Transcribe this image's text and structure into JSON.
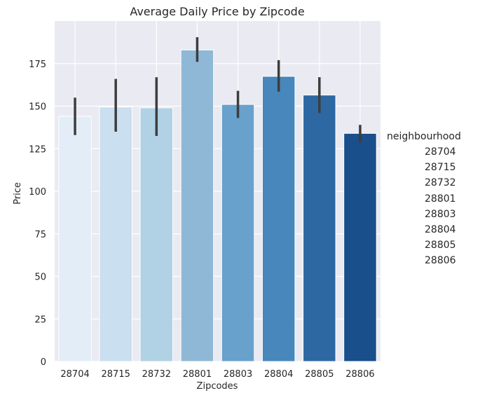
{
  "chart_data": {
    "type": "bar",
    "title": "Average Daily Price by Zipcode",
    "xlabel": "Zipcodes",
    "ylabel": "Price",
    "categories": [
      "28704",
      "28715",
      "28732",
      "28801",
      "28803",
      "28804",
      "28805",
      "28806"
    ],
    "values": [
      144,
      149.5,
      149,
      183,
      151,
      167.5,
      156.5,
      134
    ],
    "error_low": [
      133,
      135,
      132.5,
      176,
      143,
      158.5,
      146,
      128.5
    ],
    "error_high": [
      155,
      166,
      167,
      190.5,
      159,
      177,
      167,
      139
    ],
    "colors": [
      "#e3edf8",
      "#cadff0",
      "#b1d1e4",
      "#8fb8d6",
      "#68a1cb",
      "#4787bb",
      "#2d68a3",
      "#194f8a"
    ],
    "ylim": [
      0,
      200
    ],
    "yticks": [
      0,
      25,
      50,
      75,
      100,
      125,
      150,
      175
    ],
    "grid": true,
    "background": "#eaeaf2",
    "legend": {
      "title": "neighbourhood",
      "placement": "outside-right",
      "entries": [
        "28704",
        "28715",
        "28732",
        "28801",
        "28803",
        "28804",
        "28805",
        "28806"
      ]
    }
  }
}
